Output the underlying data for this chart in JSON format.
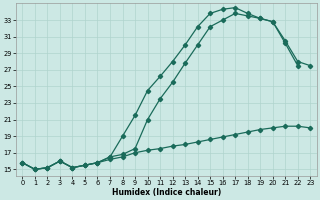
{
  "xlabel": "Humidex (Indice chaleur)",
  "background_color": "#cce8e4",
  "grid_color": "#b0d4ce",
  "line_color": "#1a6b5a",
  "xlim": [
    -0.5,
    23.5
  ],
  "ylim": [
    14.2,
    35.0
  ],
  "yticks": [
    15,
    17,
    19,
    21,
    23,
    25,
    27,
    29,
    31,
    33
  ],
  "xticks": [
    0,
    1,
    2,
    3,
    4,
    5,
    6,
    7,
    8,
    9,
    10,
    11,
    12,
    13,
    14,
    15,
    16,
    17,
    18,
    19,
    20,
    21,
    22,
    23
  ],
  "line1_x": [
    0,
    1,
    2,
    3,
    4,
    5,
    6,
    7,
    8,
    9,
    10,
    11,
    12,
    13,
    14,
    15,
    16,
    17,
    18,
    19,
    20,
    21,
    22
  ],
  "line1_y": [
    15.8,
    15.0,
    15.2,
    16.0,
    15.2,
    15.5,
    15.8,
    16.5,
    19.0,
    21.5,
    24.5,
    26.2,
    28.0,
    30.0,
    32.2,
    33.8,
    34.3,
    34.5,
    33.8,
    33.2,
    32.8,
    30.2,
    27.5
  ],
  "line2_x": [
    0,
    1,
    2,
    3,
    4,
    5,
    6,
    7,
    8,
    9,
    10,
    11,
    12,
    13,
    14,
    15,
    16,
    17,
    18,
    19,
    20,
    21,
    22,
    23
  ],
  "line2_y": [
    15.8,
    15.0,
    15.2,
    16.0,
    15.2,
    15.5,
    15.8,
    16.5,
    16.8,
    17.5,
    21.0,
    23.5,
    25.5,
    27.8,
    30.0,
    32.2,
    33.0,
    33.8,
    33.5,
    33.2,
    32.8,
    30.5,
    28.0,
    27.5
  ],
  "line3_x": [
    0,
    1,
    2,
    3,
    4,
    5,
    6,
    7,
    8,
    9,
    10,
    11,
    12,
    13,
    14,
    15,
    16,
    17,
    18,
    19,
    20,
    21,
    22,
    23
  ],
  "line3_y": [
    15.8,
    15.0,
    15.2,
    16.0,
    15.2,
    15.5,
    15.8,
    16.2,
    16.5,
    17.0,
    17.3,
    17.5,
    17.8,
    18.0,
    18.3,
    18.6,
    18.9,
    19.2,
    19.5,
    19.8,
    20.0,
    20.2,
    20.2,
    20.0
  ]
}
